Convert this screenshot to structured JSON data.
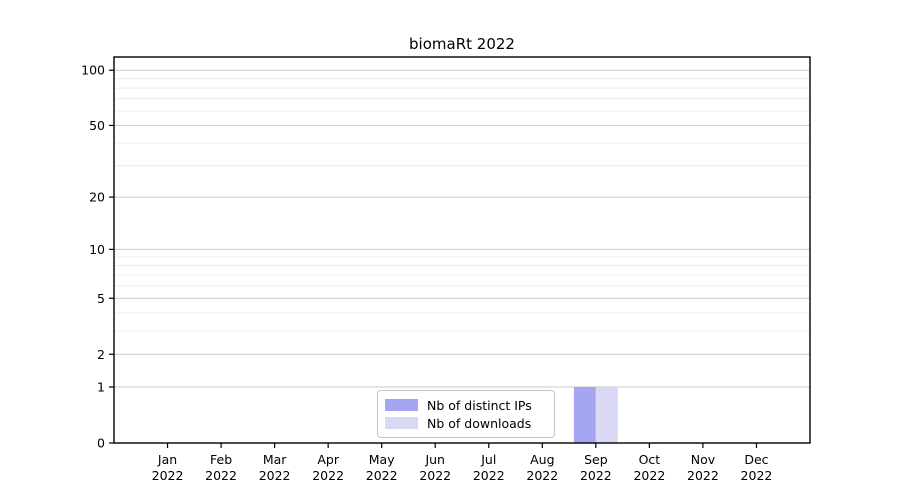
{
  "title": "biomaRt 2022",
  "chart_data": {
    "type": "bar",
    "title": "biomaRt 2022",
    "categories": [
      "Jan",
      "Feb",
      "Mar",
      "Apr",
      "May",
      "Jun",
      "Jul",
      "Aug",
      "Sep",
      "Oct",
      "Nov",
      "Dec"
    ],
    "category_year": "2022",
    "series": [
      {
        "name": "Nb of distinct IPs",
        "color": "#a5a5f1",
        "values": [
          0,
          0,
          0,
          0,
          0,
          0,
          0,
          0,
          1,
          0,
          0,
          0
        ]
      },
      {
        "name": "Nb of downloads",
        "color": "#d9d9f6",
        "values": [
          0,
          0,
          0,
          0,
          0,
          0,
          0,
          0,
          1,
          0,
          0,
          0
        ]
      }
    ],
    "yscale": "log1p",
    "ylim": [
      0,
      118
    ],
    "yticks": [
      0,
      1,
      2,
      5,
      10,
      20,
      50,
      100
    ],
    "minor_gridlines": [
      3,
      4,
      6,
      7,
      8,
      9,
      30,
      40,
      60,
      70,
      80,
      90
    ],
    "grid": true,
    "legend_position": "lower center",
    "axis_color": "#000000",
    "major_grid_color": "#c9c9c9",
    "minor_grid_color": "#ececec",
    "tick_label_color": "#000000"
  }
}
